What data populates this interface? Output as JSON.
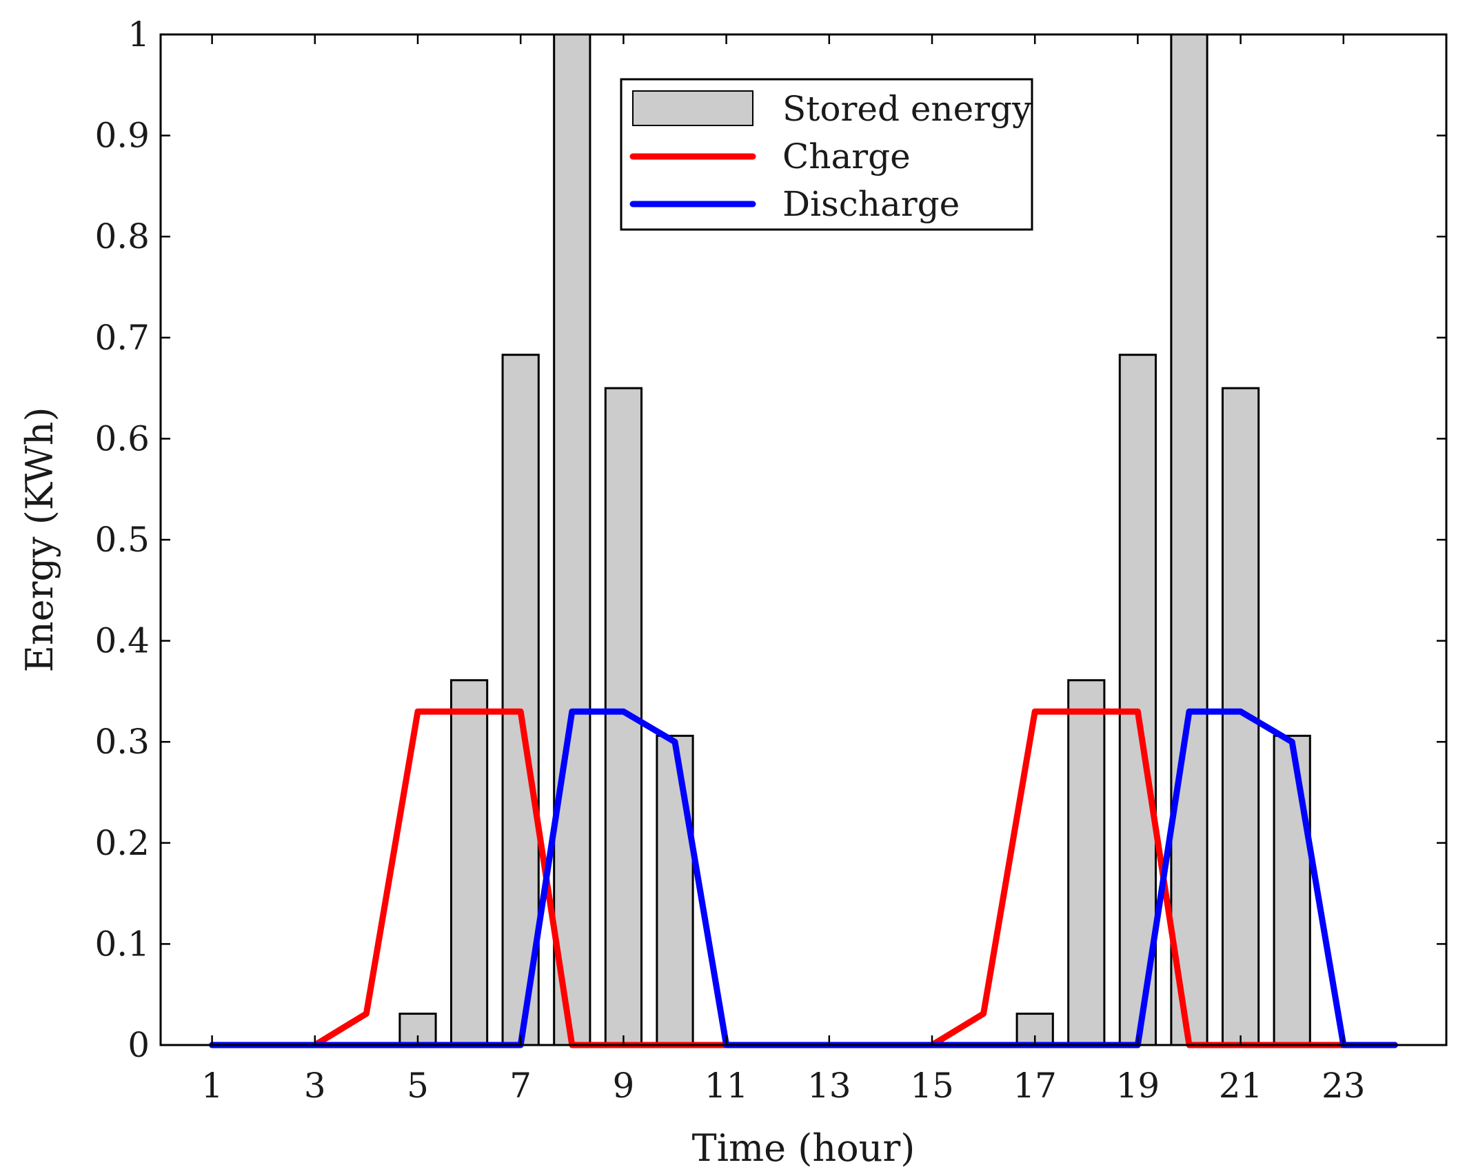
{
  "chart_data": {
    "type": "bar",
    "title": "",
    "xlabel": "Time (hour)",
    "ylabel": "Energy (KWh)",
    "xlim": [
      0,
      25
    ],
    "ylim": [
      0,
      1
    ],
    "x_ticks": [
      1,
      3,
      5,
      7,
      9,
      11,
      13,
      15,
      17,
      19,
      21,
      23
    ],
    "x_tick_labels": [
      "1",
      "3",
      "5",
      "7",
      "9",
      "11",
      "13",
      "15",
      "17",
      "19",
      "21",
      "23"
    ],
    "y_ticks": [
      0,
      0.1,
      0.2,
      0.3,
      0.4,
      0.5,
      0.6,
      0.7,
      0.8,
      0.9,
      1
    ],
    "y_tick_labels": [
      "0",
      "0.1",
      "0.2",
      "0.3",
      "0.4",
      "0.5",
      "0.6",
      "0.7",
      "0.8",
      "0.9",
      "1"
    ],
    "x": [
      1,
      2,
      3,
      4,
      5,
      6,
      7,
      8,
      9,
      10,
      11,
      12,
      13,
      14,
      15,
      16,
      17,
      18,
      19,
      20,
      21,
      22,
      23,
      24
    ],
    "legend_location": "top-center",
    "series": [
      {
        "name": "Stored energy",
        "kind": "bar",
        "color": "#cccccc",
        "edge_color": "#000000",
        "values": [
          0,
          0,
          0,
          0,
          0.031,
          0.361,
          0.683,
          1.0,
          0.65,
          0.306,
          0,
          0,
          0,
          0,
          0,
          0,
          0.031,
          0.361,
          0.683,
          1.0,
          0.65,
          0.306,
          0,
          0
        ]
      },
      {
        "name": "Charge",
        "kind": "line",
        "color": "#ff0000",
        "values": [
          0,
          0,
          0,
          0.031,
          0.33,
          0.33,
          0.33,
          0,
          0,
          0,
          0,
          0,
          0,
          0,
          0,
          0.031,
          0.33,
          0.33,
          0.33,
          0,
          0,
          0,
          0,
          0
        ]
      },
      {
        "name": "Discharge",
        "kind": "line",
        "color": "#0000ff",
        "values": [
          0,
          0,
          0,
          0,
          0,
          0,
          0,
          0.33,
          0.33,
          0.3,
          0,
          0,
          0,
          0,
          0,
          0,
          0,
          0,
          0,
          0.33,
          0.33,
          0.3,
          0,
          0
        ]
      }
    ],
    "legend": [
      "Stored energy",
      "Charge",
      "Discharge"
    ]
  }
}
